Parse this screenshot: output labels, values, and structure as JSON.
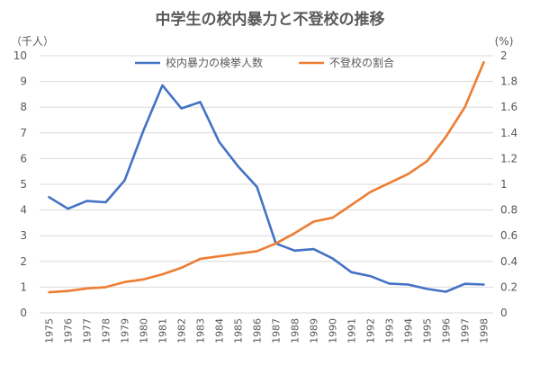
{
  "chart_data": {
    "type": "line",
    "title": "中学生の校内暴力と不登校の推移",
    "left_axis_unit": "（千人）",
    "right_axis_unit": "(%)",
    "x": [
      "1975",
      "1976",
      "1977",
      "1978",
      "1979",
      "1980",
      "1981",
      "1982",
      "1983",
      "1984",
      "1985",
      "1986",
      "1987",
      "1988",
      "1989",
      "1990",
      "1991",
      "1992",
      "1993",
      "1994",
      "1995",
      "1996",
      "1997",
      "1998"
    ],
    "y_left": {
      "min": 0,
      "max": 10,
      "ticks": [
        "0",
        "1",
        "2",
        "3",
        "4",
        "5",
        "6",
        "7",
        "8",
        "9",
        "10"
      ]
    },
    "y_right": {
      "min": 0,
      "max": 2,
      "ticks": [
        "0",
        "0.2",
        "0.4",
        "0.6",
        "0.8",
        "1",
        "1.2",
        "1.4",
        "1.6",
        "1.8",
        "2"
      ]
    },
    "grid": true,
    "legend_position": "top",
    "series": [
      {
        "name": "校内暴力の検挙人数",
        "axis": "left",
        "color": "#4472C4",
        "values": [
          4.5,
          4.05,
          4.35,
          4.3,
          5.15,
          7.1,
          8.85,
          7.95,
          8.2,
          6.65,
          5.7,
          4.9,
          2.7,
          2.42,
          2.48,
          2.12,
          1.58,
          1.43,
          1.14,
          1.1,
          0.93,
          0.82,
          1.13,
          1.1
        ]
      },
      {
        "name": "不登校の割合",
        "axis": "right",
        "color": "#ED7D31",
        "values": [
          0.16,
          0.17,
          0.19,
          0.2,
          0.24,
          0.26,
          0.3,
          0.35,
          0.42,
          0.44,
          0.46,
          0.48,
          0.54,
          0.62,
          0.71,
          0.74,
          0.84,
          0.94,
          1.01,
          1.08,
          1.18,
          1.37,
          1.6,
          1.95
        ]
      }
    ]
  }
}
